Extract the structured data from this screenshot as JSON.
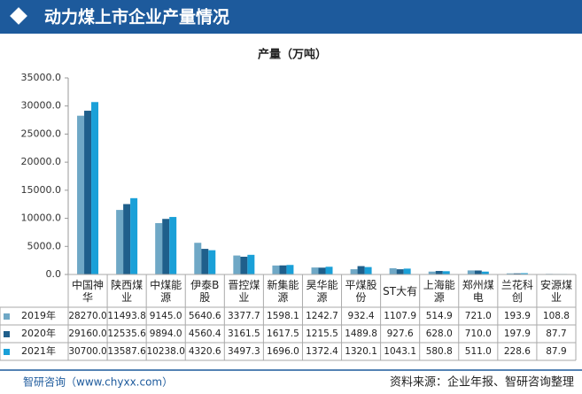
{
  "chart_data": {
    "type": "bar",
    "title": "动力煤上市企业产量情况",
    "subtitle": "产量（万吨）",
    "categories": [
      "中国神华",
      "陕西煤业",
      "中煤能源",
      "伊泰B股",
      "晋控煤业",
      "新集能源",
      "昊华能源",
      "平煤股份",
      "ST大有",
      "上海能源",
      "郑州煤电",
      "兰花科创",
      "安源煤业"
    ],
    "series": [
      {
        "name": "2019年",
        "color": "#6fa8c6",
        "values": [
          28270.0,
          11493.8,
          9145.0,
          5640.6,
          3377.7,
          1598.1,
          1242.7,
          932.4,
          1107.9,
          514.9,
          721.0,
          193.9,
          108.8
        ],
        "value_labels": [
          "28270.0",
          "11493.8",
          "9145.0",
          "5640.6",
          "3377.7",
          "1598.1",
          "1242.7",
          "932.4",
          "1107.9",
          "514.9",
          "721.0",
          "193.9",
          "108.8"
        ]
      },
      {
        "name": "2020年",
        "color": "#1f5f8b",
        "values": [
          29160.0,
          12535.6,
          9894.0,
          4560.4,
          3161.5,
          1617.5,
          1215.5,
          1489.8,
          927.6,
          628.0,
          710.0,
          197.9,
          87.7
        ],
        "value_labels": [
          "29160.0",
          "12535.6",
          "9894.0",
          "4560.4",
          "3161.5",
          "1617.5",
          "1215.5",
          "1489.8",
          "927.6",
          "628.0",
          "710.0",
          "197.9",
          "87.7"
        ]
      },
      {
        "name": "2021年",
        "color": "#1aa0d8",
        "values": [
          30700.0,
          13587.6,
          10238.0,
          4320.6,
          3497.3,
          1696.0,
          1372.4,
          1320.1,
          1043.1,
          580.8,
          511.0,
          228.6,
          87.9
        ],
        "value_labels": [
          "30700.0",
          "13587.6",
          "10238.0",
          "4320.6",
          "3497.3",
          "1696.0",
          "1372.4",
          "1320.1",
          "1043.1",
          "580.8",
          "511.0",
          "228.6",
          "87.9"
        ]
      }
    ],
    "ylim": [
      0,
      35000
    ],
    "yticks": [
      {
        "value": 0,
        "label": "0.0"
      },
      {
        "value": 5000,
        "label": "5000.0"
      },
      {
        "value": 10000,
        "label": "10000.0"
      },
      {
        "value": 15000,
        "label": "15000.0"
      },
      {
        "value": 20000,
        "label": "20000.0"
      },
      {
        "value": 25000,
        "label": "25000.0"
      },
      {
        "value": 30000,
        "label": "30000.0"
      },
      {
        "value": 35000,
        "label": "35000.0"
      }
    ],
    "footer_left": "智研咨询（www.chyxx.com）",
    "footer_right": "资料来源：企业年报、智研咨询整理"
  }
}
